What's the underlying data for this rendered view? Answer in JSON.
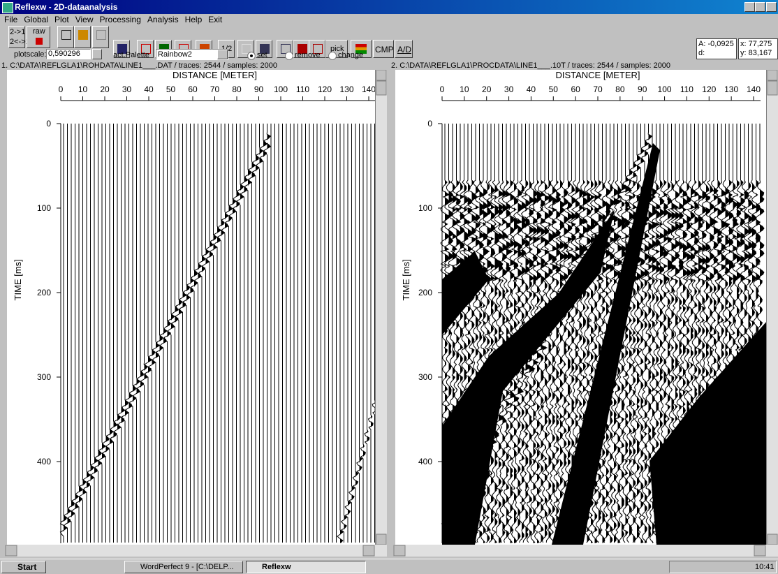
{
  "window": {
    "title": "Reflexw - 2D-dataanalysis"
  },
  "menu": [
    "File",
    "Global",
    "Plot",
    "View",
    "Processing",
    "Analysis",
    "Help",
    "Exit"
  ],
  "toolbar": {
    "swap1": "2->1",
    "swap2": "2<->1",
    "raw": "raw",
    "half": "1/2",
    "pick": "pick",
    "cmp": "CMP",
    "ad": "A/D",
    "plotscale_label": "plotscale:",
    "plotscale": "0,590296",
    "palette_label": "act.Palette",
    "palette": "Rainbow2",
    "options": [
      "set",
      "remove",
      "change"
    ]
  },
  "status": {
    "a": "A: -0,0925",
    "d": "d:",
    "x": "x: 77,275",
    "y": "y: 83,167"
  },
  "panels": [
    {
      "path": "1. C:\\DATA\\REFLGLA1\\ROHDATA\\LINE1___.DAT / traces: 2544 / samples: 2000",
      "x_label": "DISTANCE [METER]",
      "y_label": "TIME [ms]",
      "xticks": [
        "0",
        "10",
        "20",
        "30",
        "40",
        "50",
        "60",
        "70",
        "80",
        "90",
        "100",
        "110",
        "120",
        "130",
        "140"
      ],
      "yticks": [
        "0",
        "100",
        "200",
        "300",
        "400"
      ]
    },
    {
      "path": "2. C:\\DATA\\REFLGLA1\\PROCDATA\\LINE1___.10T / traces: 2544 / samples: 2000",
      "x_label": "DISTANCE [METER]",
      "y_label": "TIME [ms]",
      "xticks": [
        "0",
        "10",
        "20",
        "30",
        "40",
        "50",
        "60",
        "70",
        "80",
        "90",
        "100",
        "110",
        "120",
        "130",
        "140"
      ],
      "yticks": [
        "0",
        "100",
        "200",
        "300",
        "400"
      ]
    }
  ],
  "taskbar": {
    "start": "Start",
    "items": [
      "WordPerfect 9 - [C:\\DELP...",
      "Reflexw"
    ],
    "clock": "10:41"
  }
}
